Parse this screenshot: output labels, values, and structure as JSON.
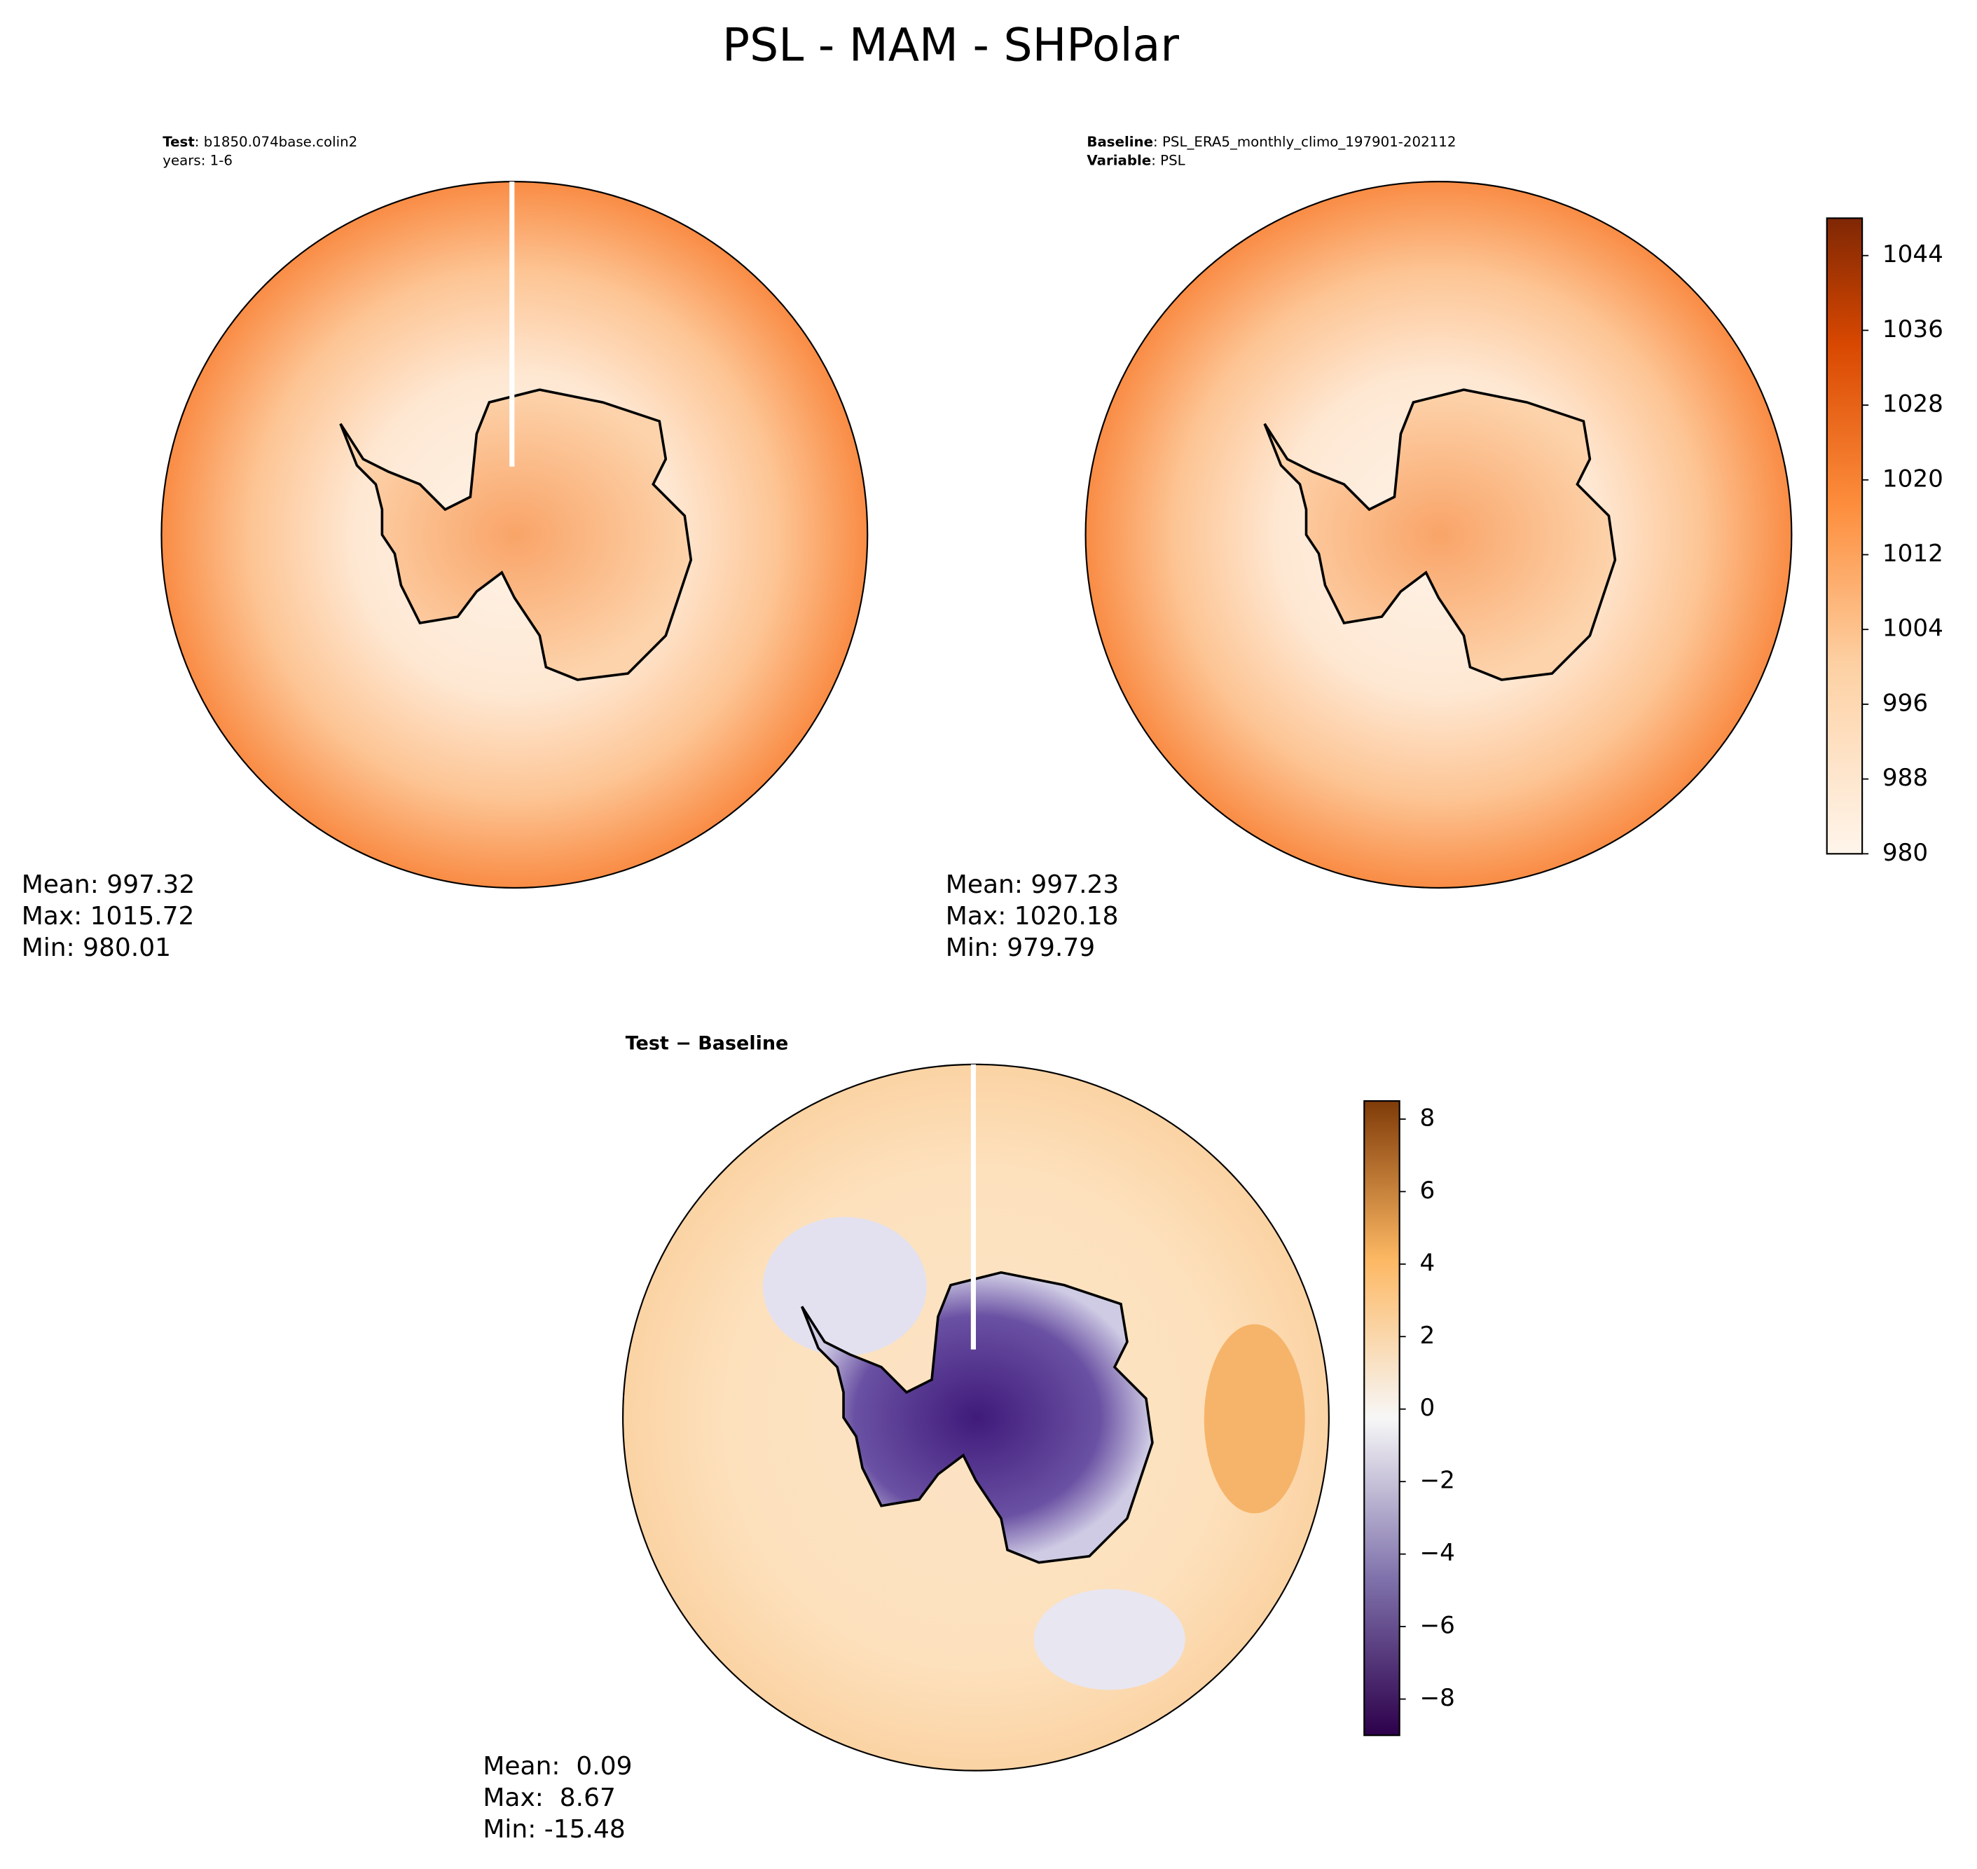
{
  "title": "PSL - MAM - SHPolar",
  "chart_data": [
    {
      "type": "contour_map",
      "label": "Test",
      "text": ": b1850.074base.colin2",
      "line2": "years: 1-6",
      "stats": [
        "Mean: 997.32",
        "Max: 1015.72",
        "Min: 980.01"
      ]
    },
    {
      "type": "contour_map",
      "label": "Baseline",
      "text": ": PSL_ERA5_monthly_climo_197901-202112",
      "label2": "Variable",
      "text2": ": PSL",
      "stats": [
        "Mean: 997.23",
        "Max: 1020.18",
        "Min: 979.79"
      ],
      "colorbar": {
        "ylim": [
          980,
          1048
        ],
        "yticks": [
          980,
          988,
          996,
          1004,
          1012,
          1020,
          1028,
          1036,
          1044
        ]
      }
    },
    {
      "type": "contour_map",
      "label": "Test − Baseline",
      "stats": [
        "Mean:  0.09",
        "Max:  8.67",
        "Min: -15.48"
      ],
      "colorbar": {
        "ylim": [
          -9,
          8.5
        ],
        "yticks": [
          {
            "value": -8,
            "label": "−8"
          },
          {
            "value": -6,
            "label": "−6"
          },
          {
            "value": -4,
            "label": "−4"
          },
          {
            "value": -2,
            "label": "−2"
          },
          0,
          2,
          4,
          6,
          8
        ]
      }
    }
  ]
}
